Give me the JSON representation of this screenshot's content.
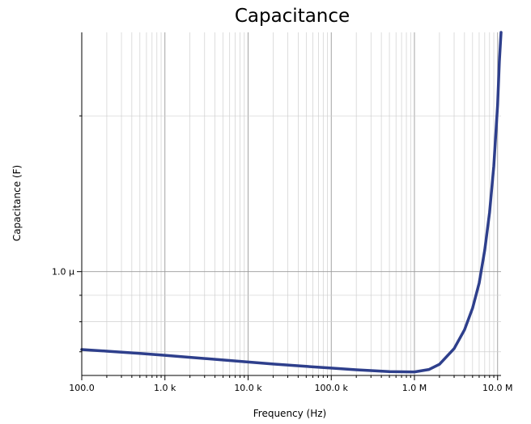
{
  "chart_data": {
    "type": "line",
    "title": "Capacitance",
    "xlabel": "Frequency (Hz)",
    "ylabel": "Capacitance (F)",
    "x_scale": "log",
    "y_scale": "log",
    "xlim": [
      100,
      11000000
    ],
    "ylim": [
      6.3e-07,
      2.9e-06
    ],
    "grid": true,
    "x_ticks": [
      {
        "value": 100,
        "label": "100.0"
      },
      {
        "value": 1000,
        "label": "1.0 k"
      },
      {
        "value": 10000,
        "label": "10.0 k"
      },
      {
        "value": 100000,
        "label": "100.0 k"
      },
      {
        "value": 1000000,
        "label": "1.0 M"
      },
      {
        "value": 10000000,
        "label": "10.0 M"
      }
    ],
    "y_ticks": [
      {
        "value": 1e-06,
        "label": "1.0 µ"
      }
    ],
    "series": [
      {
        "color": "#2e3f8c",
        "x": [
          100,
          200,
          500,
          1000,
          2000,
          5000,
          10000,
          20000,
          50000,
          100000,
          200000,
          500000,
          1000000,
          1500000,
          2000000,
          3000000,
          4000000,
          5000000,
          6000000,
          7000000,
          8000000,
          9000000,
          10000000,
          10500000,
          11000000
        ],
        "y": [
          7.07e-07,
          7.02e-07,
          6.95e-07,
          6.89e-07,
          6.83e-07,
          6.75e-07,
          6.69e-07,
          6.63e-07,
          6.56e-07,
          6.51e-07,
          6.46e-07,
          6.41e-07,
          6.4e-07,
          6.47e-07,
          6.62e-07,
          7.1e-07,
          7.72e-07,
          8.5e-07,
          9.5e-07,
          1.1e-06,
          1.3e-06,
          1.6e-06,
          2.1e-06,
          2.55e-06,
          2.95e-06
        ]
      }
    ]
  }
}
